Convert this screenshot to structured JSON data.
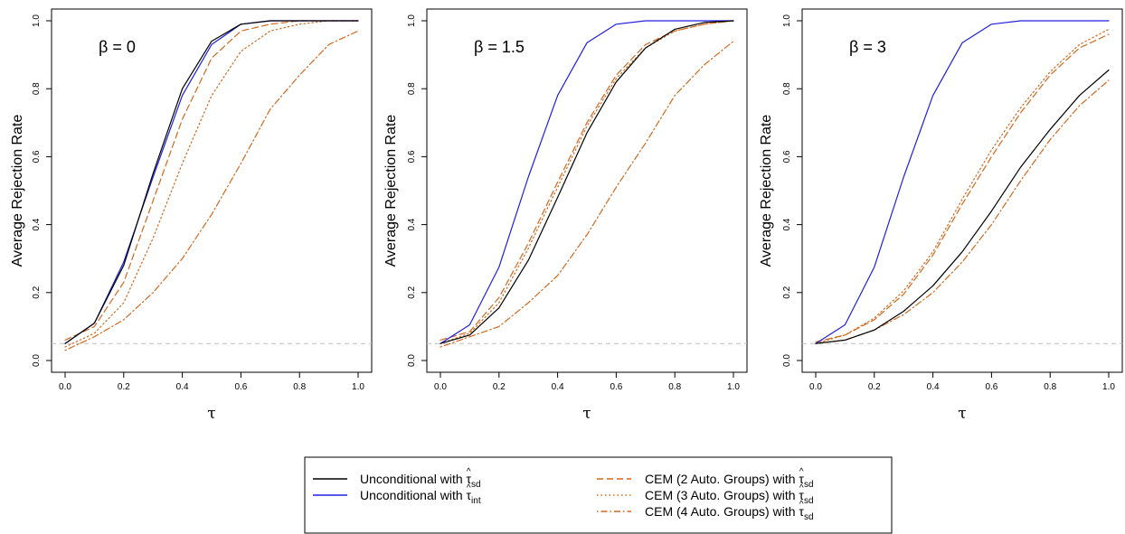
{
  "colors": {
    "black": "#000000",
    "blue": "#1f1fe0",
    "orange": "#d2691e",
    "reference": "#bfbfbf"
  },
  "legend": {
    "items": [
      {
        "prefix": "Unconditional with ",
        "hat_symbol": "τ",
        "subscript": "sd",
        "color": "black",
        "style": "solid"
      },
      {
        "prefix": "Unconditional with ",
        "hat_symbol": "τ",
        "subscript": "int",
        "color": "blue",
        "style": "solid"
      },
      {
        "prefix": "CEM (2 Auto. Groups) with ",
        "hat_symbol": "τ",
        "subscript": "sd",
        "color": "orange",
        "style": "dashed"
      },
      {
        "prefix": "CEM (3 Auto. Groups) with ",
        "hat_symbol": "τ",
        "subscript": "sd",
        "color": "orange",
        "style": "dotted"
      },
      {
        "prefix": "CEM (4 Auto. Groups) with ",
        "hat_symbol": "τ",
        "subscript": "sd",
        "color": "orange",
        "style": "dotdash"
      }
    ]
  },
  "chart_data": [
    {
      "type": "line",
      "annotation": "β = 0",
      "xlabel": "τ",
      "ylabel": "Average Rejection Rate",
      "xlim": [
        0,
        1
      ],
      "ylim": [
        0,
        1
      ],
      "x_ticks": [
        "0.0",
        "0.2",
        "0.4",
        "0.6",
        "0.8",
        "1.0"
      ],
      "y_ticks": [
        "0.0",
        "0.2",
        "0.4",
        "0.6",
        "0.8",
        "1.0"
      ],
      "reference_line": 0.05,
      "x": [
        0,
        0.1,
        0.2,
        0.3,
        0.4,
        0.5,
        0.6,
        0.7,
        0.8,
        0.9,
        1.0
      ],
      "series": [
        {
          "legend_index": 0,
          "color": "black",
          "style": "solid",
          "values": [
            0.05,
            0.11,
            0.28,
            0.55,
            0.8,
            0.94,
            0.99,
            1.0,
            1.0,
            1.0,
            1.0
          ]
        },
        {
          "legend_index": 1,
          "color": "blue",
          "style": "solid",
          "values": [
            0.05,
            0.11,
            0.29,
            0.54,
            0.78,
            0.93,
            0.99,
            1.0,
            1.0,
            1.0,
            1.0
          ]
        },
        {
          "legend_index": 2,
          "color": "orange",
          "style": "dashed",
          "values": [
            0.06,
            0.1,
            0.23,
            0.47,
            0.71,
            0.89,
            0.97,
            0.99,
            1.0,
            1.0,
            1.0
          ]
        },
        {
          "legend_index": 3,
          "color": "orange",
          "style": "dotted",
          "values": [
            0.04,
            0.08,
            0.17,
            0.36,
            0.58,
            0.78,
            0.91,
            0.97,
            0.99,
            1.0,
            1.0
          ]
        },
        {
          "legend_index": 4,
          "color": "orange",
          "style": "dotdash",
          "values": [
            0.03,
            0.07,
            0.12,
            0.2,
            0.3,
            0.43,
            0.58,
            0.74,
            0.84,
            0.93,
            0.97
          ]
        }
      ]
    },
    {
      "type": "line",
      "annotation": "β = 1.5",
      "xlabel": "τ",
      "ylabel": "Average Rejection Rate",
      "xlim": [
        0,
        1
      ],
      "ylim": [
        0,
        1
      ],
      "x_ticks": [
        "0.0",
        "0.2",
        "0.4",
        "0.6",
        "0.8",
        "1.0"
      ],
      "y_ticks": [
        "0.0",
        "0.2",
        "0.4",
        "0.6",
        "0.8",
        "1.0"
      ],
      "reference_line": 0.05,
      "x": [
        0,
        0.1,
        0.2,
        0.3,
        0.4,
        0.5,
        0.6,
        0.7,
        0.8,
        0.9,
        1.0
      ],
      "series": [
        {
          "legend_index": 0,
          "color": "black",
          "style": "solid",
          "values": [
            0.05,
            0.075,
            0.155,
            0.295,
            0.48,
            0.67,
            0.82,
            0.92,
            0.975,
            0.995,
            1.0
          ]
        },
        {
          "legend_index": 1,
          "color": "blue",
          "style": "solid",
          "values": [
            0.05,
            0.105,
            0.275,
            0.54,
            0.78,
            0.935,
            0.99,
            1.0,
            1.0,
            1.0,
            1.0
          ]
        },
        {
          "legend_index": 2,
          "color": "orange",
          "style": "dashed",
          "values": [
            0.06,
            0.085,
            0.185,
            0.345,
            0.525,
            0.7,
            0.84,
            0.93,
            0.97,
            0.99,
            1.0
          ]
        },
        {
          "legend_index": 3,
          "color": "orange",
          "style": "dotted",
          "values": [
            0.05,
            0.08,
            0.17,
            0.33,
            0.51,
            0.69,
            0.83,
            0.92,
            0.97,
            0.99,
            1.0
          ]
        },
        {
          "legend_index": 4,
          "color": "orange",
          "style": "dotdash",
          "values": [
            0.04,
            0.07,
            0.1,
            0.17,
            0.25,
            0.37,
            0.51,
            0.64,
            0.78,
            0.87,
            0.94
          ]
        }
      ]
    },
    {
      "type": "line",
      "annotation": "β = 3",
      "xlabel": "τ",
      "ylabel": "Average Rejection Rate",
      "xlim": [
        0,
        1
      ],
      "ylim": [
        0,
        1
      ],
      "x_ticks": [
        "0.0",
        "0.2",
        "0.4",
        "0.6",
        "0.8",
        "1.0"
      ],
      "y_ticks": [
        "0.0",
        "0.2",
        "0.4",
        "0.6",
        "0.8",
        "1.0"
      ],
      "reference_line": 0.05,
      "x": [
        0,
        0.1,
        0.2,
        0.3,
        0.4,
        0.5,
        0.6,
        0.7,
        0.8,
        0.9,
        1.0
      ],
      "series": [
        {
          "legend_index": 0,
          "color": "black",
          "style": "solid",
          "values": [
            0.05,
            0.06,
            0.09,
            0.145,
            0.22,
            0.32,
            0.44,
            0.57,
            0.68,
            0.78,
            0.855
          ]
        },
        {
          "legend_index": 1,
          "color": "blue",
          "style": "solid",
          "values": [
            0.05,
            0.105,
            0.275,
            0.54,
            0.78,
            0.935,
            0.99,
            1.0,
            1.0,
            1.0,
            1.0
          ]
        },
        {
          "legend_index": 2,
          "color": "orange",
          "style": "dashed",
          "values": [
            0.055,
            0.075,
            0.12,
            0.195,
            0.31,
            0.46,
            0.6,
            0.73,
            0.84,
            0.92,
            0.96
          ]
        },
        {
          "legend_index": 3,
          "color": "orange",
          "style": "dotted",
          "values": [
            0.05,
            0.075,
            0.125,
            0.205,
            0.32,
            0.475,
            0.62,
            0.745,
            0.85,
            0.93,
            0.975
          ]
        },
        {
          "legend_index": 4,
          "color": "orange",
          "style": "dotdash",
          "values": [
            0.05,
            0.06,
            0.09,
            0.135,
            0.2,
            0.29,
            0.4,
            0.53,
            0.65,
            0.75,
            0.825
          ]
        }
      ]
    }
  ]
}
